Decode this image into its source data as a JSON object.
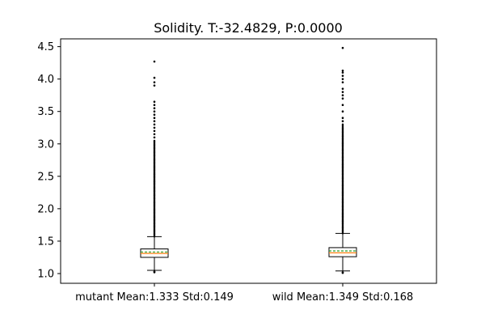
{
  "chart_data": {
    "type": "boxplot",
    "title": "Solidity. T:-32.4829, P:0.0000",
    "xlabel": "",
    "ylabel": "",
    "ylim": [
      0.85,
      4.62
    ],
    "yticks": [
      1.0,
      1.5,
      2.0,
      2.5,
      3.0,
      3.5,
      4.0,
      4.5
    ],
    "ytick_labels": [
      "1.0",
      "1.5",
      "2.0",
      "2.5",
      "3.0",
      "3.5",
      "4.0",
      "4.5"
    ],
    "categories": [
      "mutant Mean:1.333 Std:0.149",
      "wild Mean:1.349 Std:0.168"
    ],
    "grid": false,
    "colors": {
      "median": "#ff7f0e",
      "mean": "#2ca02c",
      "box": "#000000",
      "flier": "#000000"
    },
    "boxes": [
      {
        "label": "mutant Mean:1.333 Std:0.149",
        "whisker_low": 1.05,
        "q1": 1.25,
        "median": 1.31,
        "mean": 1.333,
        "q3": 1.38,
        "whisker_high": 1.57,
        "outliers_dense_range": [
          1.57,
          3.05
        ],
        "outliers_sparse": [
          1.02,
          1.03,
          3.1,
          3.15,
          3.2,
          3.25,
          3.3,
          3.35,
          3.4,
          3.45,
          3.5,
          3.55,
          3.6,
          3.65,
          3.9,
          3.95,
          4.02,
          4.27
        ]
      },
      {
        "label": "wild Mean:1.349 Std:0.168",
        "whisker_low": 1.04,
        "q1": 1.26,
        "median": 1.32,
        "mean": 1.349,
        "q3": 1.4,
        "whisker_high": 1.62,
        "outliers_dense_range": [
          1.62,
          3.3
        ],
        "outliers_sparse": [
          1.01,
          1.02,
          3.35,
          3.4,
          3.5,
          3.6,
          3.7,
          3.75,
          3.8,
          3.85,
          3.95,
          4.0,
          4.05,
          4.1,
          4.13,
          4.48
        ]
      }
    ]
  }
}
